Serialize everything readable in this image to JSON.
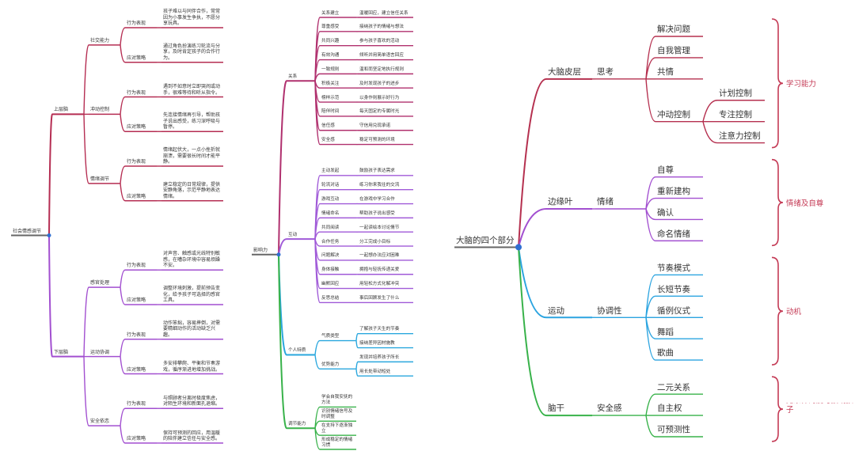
{
  "maps": [
    {
      "root": "社会情感调节",
      "children": [
        {
          "label": "上层脑",
          "color": "#b52d52",
          "children": [
            {
              "label": "社交能力",
              "children": [
                {
                  "label": "行为表现",
                  "children": [
                    {
                      "label": "孩子难以与同伴合作，常常因为小事发生争执，不愿分享玩具。"
                    }
                  ]
                },
                {
                  "label": "应对策略",
                  "children": [
                    {
                      "label": "通过角色扮演练习轮流与分享，及时肯定孩子的合作行为。"
                    }
                  ]
                }
              ]
            },
            {
              "label": "冲动控制",
              "children": [
                {
                  "label": "行为表现",
                  "children": [
                    {
                      "label": "遇到不如意时立即哭闹或动手，很难等待和听从指令。"
                    }
                  ]
                },
                {
                  "label": "应对策略",
                  "children": [
                    {
                      "label": "先连接情绪再引导，帮助孩子说出感受，练习深呼吸与暂停。"
                    }
                  ]
                }
              ]
            },
            {
              "label": "情绪调节",
              "children": [
                {
                  "label": "行为表现",
                  "children": [
                    {
                      "label": "情绪起伏大，一点小挫折就崩溃，需要很长时间才能平静。"
                    }
                  ]
                },
                {
                  "label": "应对策略",
                  "children": [
                    {
                      "label": "建立稳定的日常规律，提供安静角落，示范平静地表达情绪。"
                    }
                  ]
                }
              ]
            }
          ]
        },
        {
          "label": "下层脑",
          "color": "#a24fd0",
          "children": [
            {
              "label": "感官处理",
              "children": [
                {
                  "label": "行为表现",
                  "children": [
                    {
                      "label": "对声音、触感或光线特别敏感，在嘈杂环境中容易烦躁不安。"
                    }
                  ]
                },
                {
                  "label": "应对策略",
                  "children": [
                    {
                      "label": "调整环境刺激，提前预告变化，给予孩子可选择的感官工具。"
                    }
                  ]
                }
              ]
            },
            {
              "label": "运动协调",
              "children": [
                {
                  "label": "行为表现",
                  "children": [
                    {
                      "label": "动作笨拙，容易摔倒，对需要精细动作的活动缺乏兴趣。"
                    }
                  ]
                },
                {
                  "label": "应对策略",
                  "children": [
                    {
                      "label": "多安排攀爬、平衡和节奏游戏，循序渐进地增加挑战。"
                    }
                  ]
                }
              ]
            },
            {
              "label": "安全依恋",
              "children": [
                {
                  "label": "行为表现",
                  "children": [
                    {
                      "label": "与照顾者分离时极度焦虑，对陌生环境和新面孔退缩。"
                    }
                  ]
                },
                {
                  "label": "应对策略",
                  "children": [
                    {
                      "label": "保持可预测的回应，用温暖的陪伴建立信任与安全感。"
                    }
                  ]
                }
              ]
            }
          ]
        }
      ]
    },
    {
      "root": "影响力",
      "children": [
        {
          "label": "关系",
          "color": "#b0306e",
          "children": [
            {
              "label": "关系建立",
              "children": [
                {
                  "label": "温暖回应，建立信任关系"
                }
              ]
            },
            {
              "label": "尊重感受",
              "children": [
                {
                  "label": "接纳孩子的情绪与想法"
                }
              ]
            },
            {
              "label": "共同兴趣",
              "children": [
                {
                  "label": "参与孩子喜欢的活动"
                }
              ]
            },
            {
              "label": "有效沟通",
              "children": [
                {
                  "label": "倾听并用简单语言回应"
                }
              ]
            },
            {
              "label": "一致规则",
              "children": [
                {
                  "label": "温和而坚定地执行规则"
                }
              ]
            },
            {
              "label": "积极关注",
              "children": [
                {
                  "label": "及时发现孩子的进步"
                }
              ]
            },
            {
              "label": "榜样示范",
              "children": [
                {
                  "label": "以身作则展示好行为"
                }
              ]
            },
            {
              "label": "陪伴时间",
              "children": [
                {
                  "label": "每天固定的专属时光"
                }
              ]
            },
            {
              "label": "信任感",
              "children": [
                {
                  "label": "守信用兑现承诺"
                }
              ]
            },
            {
              "label": "安全感",
              "children": [
                {
                  "label": "稳定可预测的环境"
                }
              ]
            }
          ]
        },
        {
          "label": "互动",
          "color": "#a05ad8",
          "children": [
            {
              "label": "主动发起",
              "children": [
                {
                  "label": "鼓励孩子表达需求"
                }
              ]
            },
            {
              "label": "轮流对话",
              "children": [
                {
                  "label": "练习你来我往的交流"
                }
              ]
            },
            {
              "label": "游戏互动",
              "children": [
                {
                  "label": "在游戏中学习合作"
                }
              ]
            },
            {
              "label": "情绪命名",
              "children": [
                {
                  "label": "帮助孩子说出感受"
                }
              ]
            },
            {
              "label": "共同阅读",
              "children": [
                {
                  "label": "一起读绘本讨论情节"
                }
              ]
            },
            {
              "label": "合作任务",
              "children": [
                {
                  "label": "分工完成小目标"
                }
              ]
            },
            {
              "label": "问题解决",
              "children": [
                {
                  "label": "一起想办法应对困难"
                }
              ]
            },
            {
              "label": "身体接触",
              "children": [
                {
                  "label": "拥抱与轻抚传递关爱"
                }
              ]
            },
            {
              "label": "幽默回应",
              "children": [
                {
                  "label": "用轻松方式化解冲突"
                }
              ]
            },
            {
              "label": "反思总结",
              "children": [
                {
                  "label": "事后回顾发生了什么"
                }
              ]
            }
          ]
        },
        {
          "label": "个人特质",
          "color": "#2aa7de",
          "children": [
            {
              "label": "气质类型",
              "children": [
                {
                  "label": "了解孩子天生的节奏"
                },
                {
                  "label": "接纳差异因材施教"
                }
              ]
            },
            {
              "label": "优势能力",
              "children": [
                {
                  "label": "发现并培养孩子所长"
                },
                {
                  "label": "用长处带动短处"
                }
              ]
            }
          ]
        },
        {
          "label": "调节能力",
          "color": "#38b24a",
          "children": [
            {
              "label": "学会自我安抚的方法"
            },
            {
              "label": "识别情绪信号及时调整"
            },
            {
              "label": "在支持下逐渐独立"
            },
            {
              "label": "形成稳定的情绪习惯"
            }
          ]
        }
      ]
    },
    {
      "root": "大脑的四个部分",
      "note_color": "#c43a55",
      "children": [
        {
          "label": "大脑皮层",
          "color": "#b5304f",
          "note": "学习能力",
          "children": [
            {
              "label": "思考",
              "children": [
                {
                  "label": "解决问题"
                },
                {
                  "label": "自我管理"
                },
                {
                  "label": "共情"
                },
                {
                  "label": "冲动控制",
                  "children": [
                    {
                      "label": "计划控制"
                    },
                    {
                      "label": "专注控制"
                    },
                    {
                      "label": "注意力控制"
                    }
                  ]
                }
              ]
            }
          ]
        },
        {
          "label": "边缘叶",
          "color": "#a24fd0",
          "note": "情绪及自尊",
          "children": [
            {
              "label": "情绪",
              "children": [
                {
                  "label": "自尊"
                },
                {
                  "label": "重新建构"
                },
                {
                  "label": "确认"
                },
                {
                  "label": "命名情绪"
                }
              ]
            }
          ]
        },
        {
          "label": "运动",
          "color": "#2ba4e0",
          "note": "动机",
          "children": [
            {
              "label": "协调性",
              "children": [
                {
                  "label": "节奏模式"
                },
                {
                  "label": "长短节奏"
                },
                {
                  "label": "循例仪式"
                },
                {
                  "label": "舞蹈"
                },
                {
                  "label": "歌曲"
                }
              ]
            }
          ]
        },
        {
          "label": "脑干",
          "color": "#38b24a",
          "note": "无条件的爱与接纳孩子",
          "children": [
            {
              "label": "安全感",
              "children": [
                {
                  "label": "二元关系"
                },
                {
                  "label": "自主权"
                },
                {
                  "label": "可预测性"
                }
              ]
            }
          ]
        }
      ]
    }
  ]
}
